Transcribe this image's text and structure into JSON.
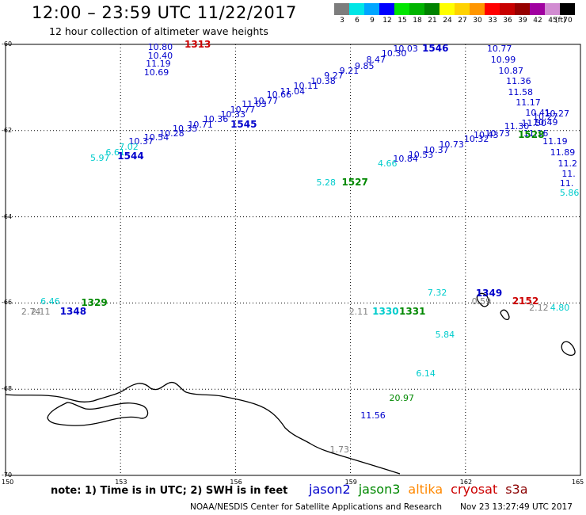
{
  "title": "12:00 – 23:59 UTC 11/22/2017",
  "subtitle": "12 hour collection of altimeter wave heights",
  "scale": {
    "unit": "(ft)",
    "swatches": [
      {
        "label": "3",
        "color": "#7d7d7d"
      },
      {
        "label": "6",
        "color": "#00e6e6"
      },
      {
        "label": "9",
        "color": "#00a6ff"
      },
      {
        "label": "12",
        "color": "#0000ff"
      },
      {
        "label": "15",
        "color": "#00e600"
      },
      {
        "label": "18",
        "color": "#00b400"
      },
      {
        "label": "21",
        "color": "#008200"
      },
      {
        "label": "24",
        "color": "#ffff00"
      },
      {
        "label": "27",
        "color": "#ffd200"
      },
      {
        "label": "30",
        "color": "#ff9600"
      },
      {
        "label": "33",
        "color": "#ff0000"
      },
      {
        "label": "36",
        "color": "#c80000"
      },
      {
        "label": "39",
        "color": "#960000"
      },
      {
        "label": "42",
        "color": "#a000a0"
      },
      {
        "label": "45",
        "color": "#d28cd2"
      },
      {
        "label": "70",
        "color": "#000000"
      }
    ]
  },
  "axes": {
    "lat_ticks": [
      "-60",
      "-62",
      "-64",
      "-66",
      "-68",
      "-70"
    ],
    "lon_ticks": [
      "150",
      "153",
      "156",
      "159",
      "162",
      "165"
    ]
  },
  "colors": {
    "jason2": "#0000cc",
    "jason3": "#008800",
    "altika": "#ff8800",
    "cryosat": "#cc0000",
    "s3a": "#8b0000",
    "low": "#00cccc",
    "vlow": "#808080"
  },
  "measurements": [
    {
      "text": "10.80",
      "lon": 154.0,
      "lat": -60.05,
      "color": "#0000cc"
    },
    {
      "text": "10.40",
      "lon": 154.0,
      "lat": -60.25,
      "color": "#0000cc"
    },
    {
      "text": "11.19",
      "lon": 153.95,
      "lat": -60.45,
      "color": "#0000cc"
    },
    {
      "text": "10.69",
      "lon": 153.9,
      "lat": -60.65,
      "color": "#0000cc"
    },
    {
      "text": "10.03",
      "lon": 160.4,
      "lat": -60.1,
      "color": "#0000cc"
    },
    {
      "text": "10.30",
      "lon": 160.1,
      "lat": -60.2,
      "color": "#0000cc"
    },
    {
      "text": "8.47",
      "lon": 159.7,
      "lat": -60.35,
      "color": "#0000cc"
    },
    {
      "text": "9.85",
      "lon": 159.4,
      "lat": -60.5,
      "color": "#0000cc"
    },
    {
      "text": "9.21",
      "lon": 159.0,
      "lat": -60.6,
      "color": "#0000cc"
    },
    {
      "text": "9.27",
      "lon": 158.6,
      "lat": -60.72,
      "color": "#0000cc"
    },
    {
      "text": "10.38",
      "lon": 158.25,
      "lat": -60.85,
      "color": "#0000cc"
    },
    {
      "text": "10.11",
      "lon": 157.8,
      "lat": -60.95,
      "color": "#0000cc"
    },
    {
      "text": "11.04",
      "lon": 157.45,
      "lat": -61.08,
      "color": "#0000cc"
    },
    {
      "text": "10.66",
      "lon": 157.1,
      "lat": -61.15,
      "color": "#0000cc"
    },
    {
      "text": "10.77",
      "lon": 156.75,
      "lat": -61.3,
      "color": "#0000cc"
    },
    {
      "text": "11.03",
      "lon": 156.45,
      "lat": -61.38,
      "color": "#0000cc"
    },
    {
      "text": "10.77",
      "lon": 156.15,
      "lat": -61.5,
      "color": "#0000cc"
    },
    {
      "text": "10.33",
      "lon": 155.9,
      "lat": -61.62,
      "color": "#0000cc"
    },
    {
      "text": "10.36",
      "lon": 155.45,
      "lat": -61.73,
      "color": "#0000cc"
    },
    {
      "text": "10.71",
      "lon": 155.05,
      "lat": -61.85,
      "color": "#0000cc"
    },
    {
      "text": "10.35",
      "lon": 154.65,
      "lat": -61.95,
      "color": "#0000cc"
    },
    {
      "text": "10.28",
      "lon": 154.3,
      "lat": -62.05,
      "color": "#0000cc"
    },
    {
      "text": "10.54",
      "lon": 153.9,
      "lat": -62.15,
      "color": "#0000cc"
    },
    {
      "text": "10.37",
      "lon": 153.5,
      "lat": -62.25,
      "color": "#0000cc"
    },
    {
      "text": "7.02",
      "lon": 153.25,
      "lat": -62.38,
      "color": "#00cccc"
    },
    {
      "text": "6.61",
      "lon": 152.9,
      "lat": -62.5,
      "color": "#00cccc"
    },
    {
      "text": "5.97",
      "lon": 152.5,
      "lat": -62.62,
      "color": "#00cccc"
    },
    {
      "text": "10.77",
      "lon": 162.85,
      "lat": -60.1,
      "color": "#0000cc"
    },
    {
      "text": "10.99",
      "lon": 162.95,
      "lat": -60.35,
      "color": "#0000cc"
    },
    {
      "text": "10.87",
      "lon": 163.15,
      "lat": -60.6,
      "color": "#0000cc"
    },
    {
      "text": "11.36",
      "lon": 163.35,
      "lat": -60.85,
      "color": "#0000cc"
    },
    {
      "text": "11.58",
      "lon": 163.4,
      "lat": -61.1,
      "color": "#0000cc"
    },
    {
      "text": "11.17",
      "lon": 163.6,
      "lat": -61.35,
      "color": "#0000cc"
    },
    {
      "text": "10.41",
      "lon": 163.85,
      "lat": -61.58,
      "color": "#0000cc"
    },
    {
      "text": "10.27",
      "lon": 164.35,
      "lat": -61.6,
      "color": "#0000cc"
    },
    {
      "text": "10.27",
      "lon": 164.05,
      "lat": -61.68,
      "color": "#0000cc"
    },
    {
      "text": "10.49",
      "lon": 164.05,
      "lat": -61.8,
      "color": "#0000cc"
    },
    {
      "text": "11.50",
      "lon": 163.75,
      "lat": -61.82,
      "color": "#0000cc"
    },
    {
      "text": "11.30",
      "lon": 163.3,
      "lat": -61.9,
      "color": "#0000cc"
    },
    {
      "text": "11.16",
      "lon": 163.8,
      "lat": -62.05,
      "color": "#0000cc"
    },
    {
      "text": "11.19",
      "lon": 164.3,
      "lat": -62.25,
      "color": "#0000cc"
    },
    {
      "text": "11.89",
      "lon": 164.5,
      "lat": -62.5,
      "color": "#0000cc"
    },
    {
      "text": "11.2",
      "lon": 164.7,
      "lat": -62.75,
      "color": "#0000cc"
    },
    {
      "text": "11.",
      "lon": 164.8,
      "lat": -63.0,
      "color": "#0000cc"
    },
    {
      "text": "11.",
      "lon": 164.75,
      "lat": -63.22,
      "color": "#0000cc"
    },
    {
      "text": "5.86",
      "lon": 164.75,
      "lat": -63.43,
      "color": "#00cccc"
    },
    {
      "text": "10.73",
      "lon": 162.8,
      "lat": -62.05,
      "color": "#0000cc"
    },
    {
      "text": "10.43",
      "lon": 162.5,
      "lat": -62.1,
      "color": "#0000cc"
    },
    {
      "text": "10.32",
      "lon": 162.25,
      "lat": -62.18,
      "color": "#0000cc"
    },
    {
      "text": "10.73",
      "lon": 161.6,
      "lat": -62.32,
      "color": "#0000cc"
    },
    {
      "text": "10.37",
      "lon": 161.2,
      "lat": -62.45,
      "color": "#0000cc"
    },
    {
      "text": "10.53",
      "lon": 160.8,
      "lat": -62.55,
      "color": "#0000cc"
    },
    {
      "text": "10.84",
      "lon": 160.4,
      "lat": -62.65,
      "color": "#0000cc"
    },
    {
      "text": "4.66",
      "lon": 160.0,
      "lat": -62.75,
      "color": "#00cccc"
    },
    {
      "text": "5.28",
      "lon": 158.4,
      "lat": -63.2,
      "color": "#00cccc"
    },
    {
      "text": "6.46",
      "lon": 151.2,
      "lat": -65.95,
      "color": "#00cccc"
    },
    {
      "text": "2.74",
      "lon": 150.7,
      "lat": -66.2,
      "color": "#808080"
    },
    {
      "text": "2.11",
      "lon": 150.95,
      "lat": -66.2,
      "color": "#808080"
    },
    {
      "text": "7.32",
      "lon": 161.3,
      "lat": -65.75,
      "color": "#00cccc"
    },
    {
      "text": "0.59",
      "lon": 162.45,
      "lat": -65.95,
      "color": "#808080"
    },
    {
      "text": "2.12",
      "lon": 163.95,
      "lat": -66.1,
      "color": "#808080"
    },
    {
      "text": "4.80",
      "lon": 164.5,
      "lat": -66.1,
      "color": "#00cccc"
    },
    {
      "text": "2.11",
      "lon": 159.25,
      "lat": -66.2,
      "color": "#808080"
    },
    {
      "text": "5.84",
      "lon": 161.5,
      "lat": -66.72,
      "color": "#00cccc"
    },
    {
      "text": "6.14",
      "lon": 161.0,
      "lat": -67.62,
      "color": "#00cccc"
    },
    {
      "text": "20.97",
      "lon": 160.3,
      "lat": -68.2,
      "color": "#008800"
    },
    {
      "text": "11.56",
      "lon": 159.55,
      "lat": -68.6,
      "color": "#0000cc"
    },
    {
      "text": "1.73",
      "lon": 158.75,
      "lat": -69.4,
      "color": "#808080"
    }
  ],
  "passes": [
    {
      "text": "1313",
      "lon": 155.0,
      "lat": -60.0,
      "color": "#cc0000"
    },
    {
      "text": "1546",
      "lon": 161.2,
      "lat": -60.1,
      "color": "#0000cc"
    },
    {
      "text": "1545",
      "lon": 156.2,
      "lat": -61.85,
      "color": "#0000cc"
    },
    {
      "text": "1544",
      "lon": 153.25,
      "lat": -62.6,
      "color": "#0000cc"
    },
    {
      "text": "1528",
      "lon": 163.7,
      "lat": -62.1,
      "color": "#008800"
    },
    {
      "text": "1527",
      "lon": 159.1,
      "lat": -63.2,
      "color": "#008800"
    },
    {
      "text": "1329",
      "lon": 152.3,
      "lat": -66.0,
      "color": "#008800"
    },
    {
      "text": "1348",
      "lon": 151.75,
      "lat": -66.2,
      "color": "#0000cc"
    },
    {
      "text": "1349",
      "lon": 162.6,
      "lat": -65.78,
      "color": "#0000cc"
    },
    {
      "text": "2152",
      "lon": 163.55,
      "lat": -65.95,
      "color": "#cc0000"
    },
    {
      "text": "1330",
      "lon": 159.9,
      "lat": -66.2,
      "color": "#00cccc"
    },
    {
      "text": "1331",
      "lon": 160.6,
      "lat": -66.2,
      "color": "#008800"
    }
  ],
  "note": "note: 1) Time is in UTC; 2) SWH is in feet",
  "legend": [
    {
      "label": "jason2",
      "color": "#0000cc"
    },
    {
      "label": "jason3",
      "color": "#008800"
    },
    {
      "label": "altika",
      "color": "#ff8800"
    },
    {
      "label": "cryosat",
      "color": "#cc0000"
    },
    {
      "label": "s3a",
      "color": "#8b0000"
    }
  ],
  "footer_left": "NOAA/NESDIS Center for Satellite Applications and Research",
  "footer_right": "Nov 23 13:27:49 UTC 2017"
}
